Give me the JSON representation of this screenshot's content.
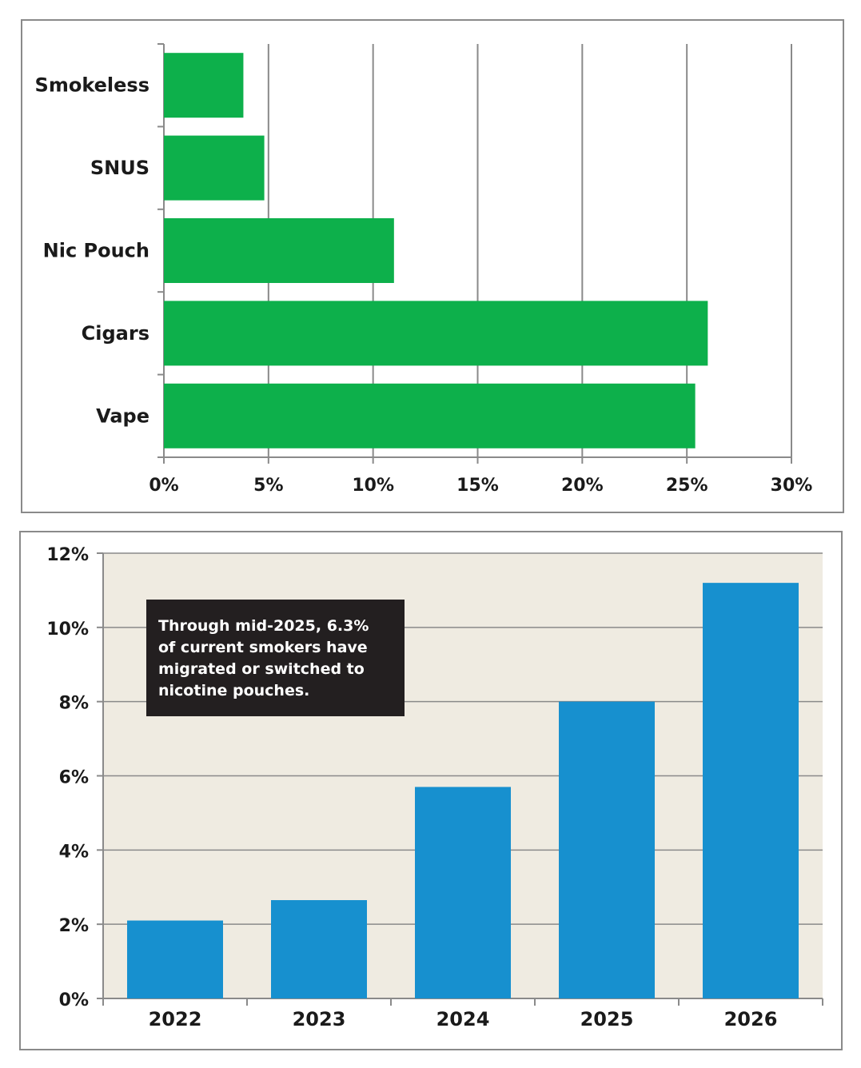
{
  "colors": {
    "bar_top": "#0db04b",
    "bar_bottom": "#1790cf",
    "plot_bg_bottom": "#efebe1",
    "grid": "#8a8a8a",
    "annotation_bg": "#231f20"
  },
  "chart_data": [
    {
      "type": "bar",
      "orientation": "horizontal",
      "categories": [
        "Smokeless",
        "SNUS",
        "Nic Pouch",
        "Cigars",
        "Vape"
      ],
      "values": [
        3.8,
        4.8,
        11.0,
        26.0,
        25.4
      ],
      "xticks": [
        "0%",
        "5%",
        "10%",
        "15%",
        "20%",
        "25%",
        "30%"
      ],
      "xlim": [
        0,
        30
      ],
      "grid": "vertical"
    },
    {
      "type": "bar",
      "orientation": "vertical",
      "categories": [
        "2022",
        "2023",
        "2024",
        "2025",
        "2026"
      ],
      "values": [
        2.1,
        2.65,
        5.7,
        8.0,
        11.2
      ],
      "yticks": [
        "0%",
        "2%",
        "4%",
        "6%",
        "8%",
        "10%",
        "12%"
      ],
      "ylim": [
        0,
        12
      ],
      "grid": "horizontal",
      "annotation": {
        "lines": [
          "Through mid-2025, 6.3%",
          "of current smokers have",
          "migrated or switched to",
          "nicotine pouches."
        ]
      }
    }
  ]
}
